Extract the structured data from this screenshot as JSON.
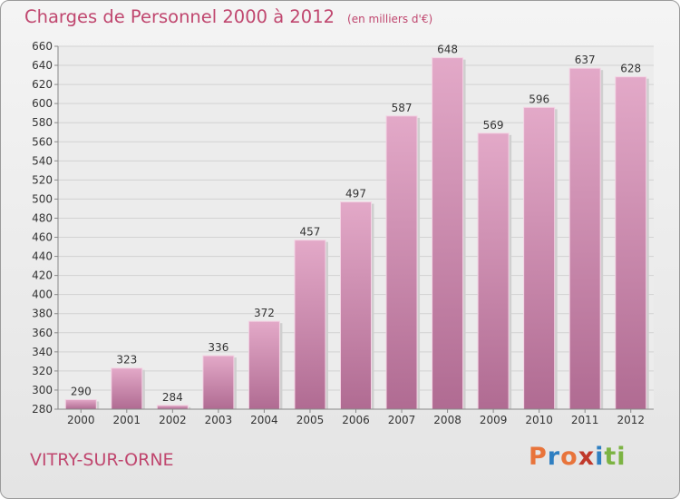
{
  "header": {
    "title": "Charges de Personnel 2000 à 2012",
    "unit": "(en milliers d'€)"
  },
  "footer": {
    "commune": "VITRY-SUR-ORNE",
    "logo_letters": [
      "P",
      "r",
      "o",
      "x",
      "i",
      "t",
      "i"
    ],
    "logo_colors": [
      "#e8743b",
      "#2f7fc1",
      "#e8743b",
      "#c0392b",
      "#2f7fc1",
      "#7cb342",
      "#7cb342"
    ]
  },
  "chart_data": {
    "type": "bar",
    "title": "Charges de Personnel 2000 à 2012",
    "subtitle": "(en milliers d'€)",
    "categories": [
      "2000",
      "2001",
      "2002",
      "2003",
      "2004",
      "2005",
      "2006",
      "2007",
      "2008",
      "2009",
      "2010",
      "2011",
      "2012"
    ],
    "values": [
      290,
      323,
      284,
      336,
      372,
      457,
      497,
      587,
      648,
      569,
      596,
      637,
      628
    ],
    "ylim": [
      280,
      660
    ],
    "yticks": [
      280,
      300,
      320,
      340,
      360,
      380,
      400,
      420,
      440,
      460,
      480,
      500,
      520,
      540,
      560,
      580,
      600,
      620,
      640,
      660
    ],
    "grid": true,
    "bar_color": "#d98cb3"
  }
}
